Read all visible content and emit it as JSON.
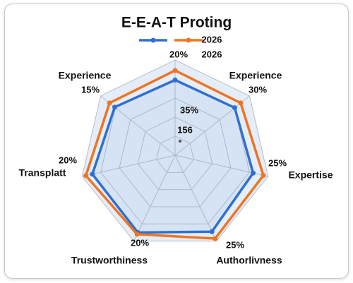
{
  "chart_data": {
    "type": "radar",
    "title": "E-E-A-T Proting",
    "categories": [
      null,
      "Experience",
      "Expertise",
      "Authorlivness",
      "Trustworthiness",
      "Transplatt",
      "Experience"
    ],
    "axis_annotations": [
      "20%",
      "30%",
      "25%",
      "25%",
      "20%",
      "20%",
      "15%"
    ],
    "inner_annotations": [
      "35%",
      "156"
    ],
    "rlim": [
      0,
      100
    ],
    "rticks": [
      20,
      40,
      60,
      80,
      100
    ],
    "grid": true,
    "series": [
      {
        "name": "2026",
        "color": "#2f6fd1",
        "values": [
          79,
          80,
          84,
          89,
          90,
          89,
          81
        ]
      },
      {
        "name": "2026",
        "color": "#ee7522",
        "values": [
          89,
          88,
          95,
          97,
          92,
          96,
          88
        ]
      }
    ]
  }
}
